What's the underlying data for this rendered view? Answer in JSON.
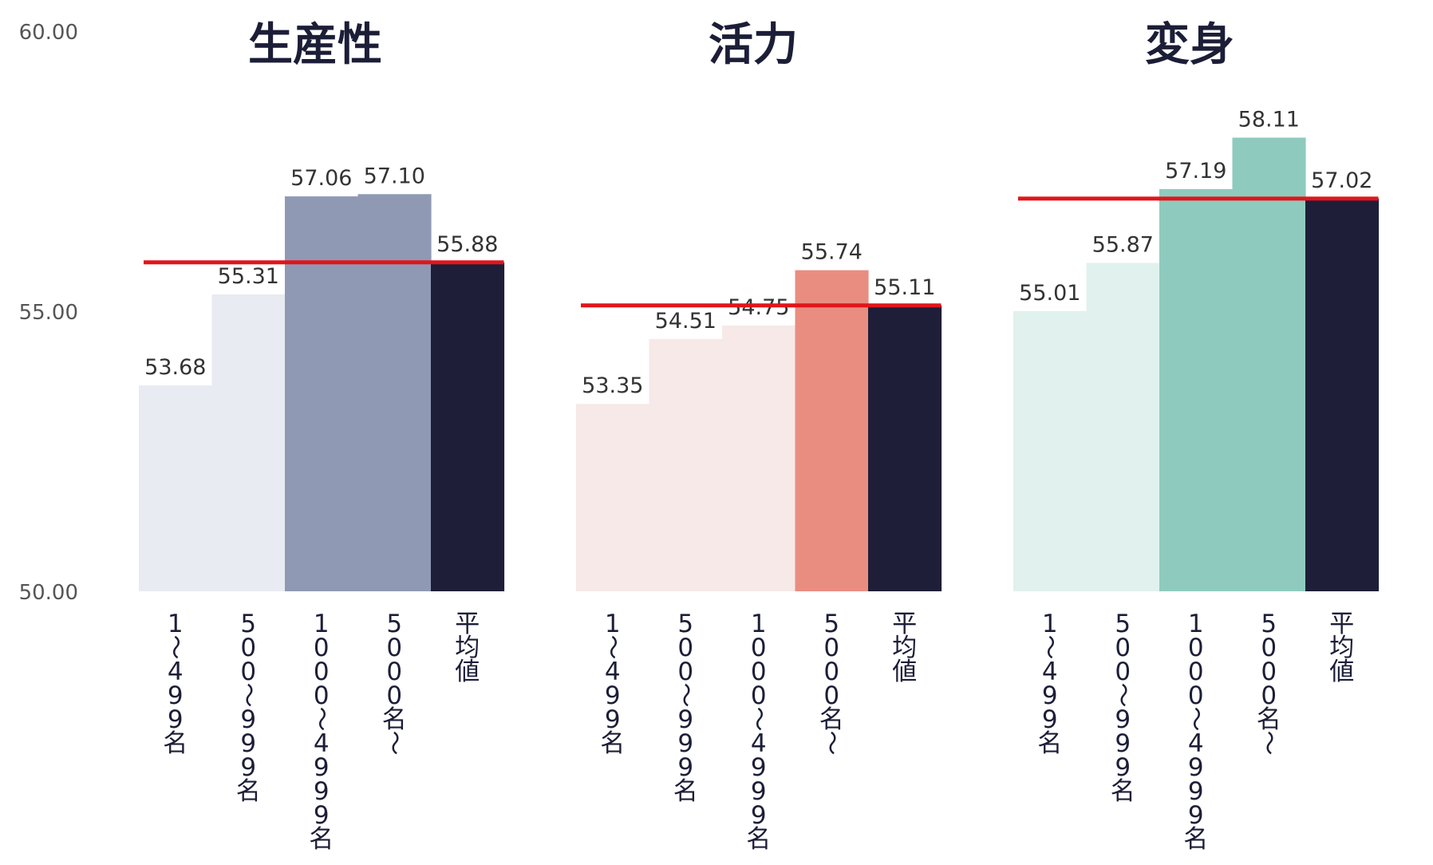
{
  "chart_data": {
    "type": "bar",
    "categories": [
      "1～499名",
      "500～999名",
      "1000～4999名",
      "5000名～",
      "平均値"
    ],
    "y_ticks": [
      "60.00",
      "55.00",
      "50.00"
    ],
    "ylim": [
      50,
      60
    ],
    "grid": false,
    "panels": [
      {
        "title": "生産性",
        "values": [
          53.68,
          55.31,
          57.06,
          57.1,
          55.88
        ],
        "value_labels": [
          "53.68",
          "55.31",
          "57.06",
          "57.10",
          "55.88"
        ],
        "average": 55.88,
        "colors": [
          "#e8ebf1",
          "#e8ebf1",
          "#8f99b4",
          "#8f99b4",
          "#1e1e38"
        ]
      },
      {
        "title": "活力",
        "values": [
          53.35,
          54.51,
          54.75,
          55.74,
          55.11
        ],
        "value_labels": [
          "53.35",
          "54.51",
          "54.75",
          "55.74",
          "55.11"
        ],
        "average": 55.11,
        "colors": [
          "#f6e9e7",
          "#f6e9e7",
          "#f6e9e7",
          "#e98d81",
          "#1e1e38"
        ]
      },
      {
        "title": "変身",
        "values": [
          55.01,
          55.87,
          57.19,
          58.11,
          57.02
        ],
        "value_labels": [
          "55.01",
          "55.87",
          "57.19",
          "58.11",
          "57.02"
        ],
        "average": 57.02,
        "colors": [
          "#e1f1ed",
          "#e1f1ed",
          "#8ecbbe",
          "#8ecbbe",
          "#1e1e38"
        ]
      }
    ],
    "average_line_color": "#e0161b"
  }
}
